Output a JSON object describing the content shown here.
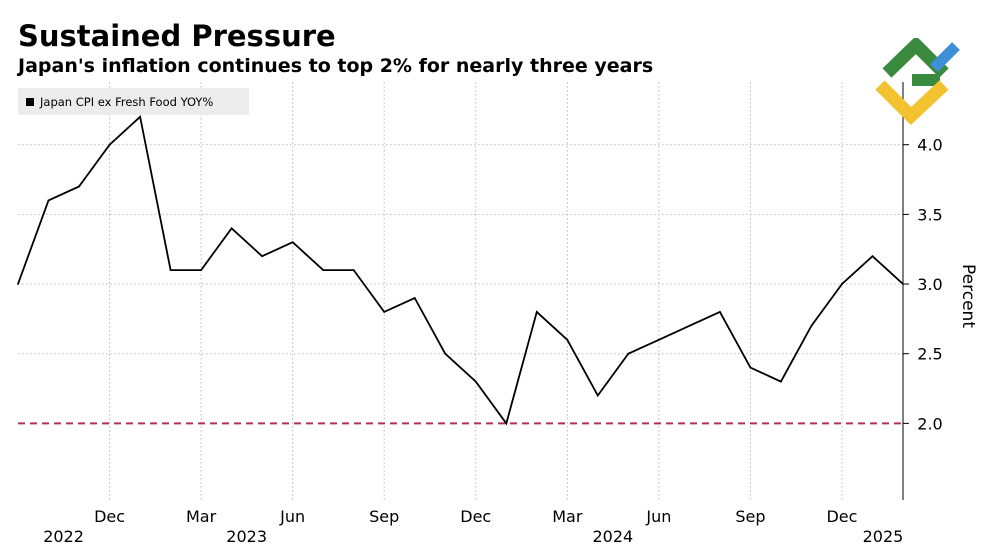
{
  "header": {
    "title": "Sustained Pressure",
    "subtitle": "Japan's inflation continues to top 2% for nearly three years"
  },
  "legend": {
    "label": "Japan CPI ex Fresh Food YOY%"
  },
  "logo": {
    "icon": "brand-logo-icon",
    "colors": [
      "#3a8a3e",
      "#f2c230",
      "#3d8fd6"
    ]
  },
  "chart_data": {
    "type": "line",
    "title": "Sustained Pressure",
    "subtitle": "Japan's inflation continues to top 2% for nearly three years",
    "ylabel": "Percent",
    "ylim": [
      1.45,
      4.45
    ],
    "yticks": [
      2.0,
      2.5,
      3.0,
      3.5,
      4.0
    ],
    "ytick_labels": [
      "2.0",
      "2.5",
      "3.0",
      "3.5",
      "4.0"
    ],
    "y_axis_side": "right",
    "grid": true,
    "legend_position": "top-left",
    "x": [
      "2022-09",
      "2022-10",
      "2022-11",
      "2022-12",
      "2023-01",
      "2023-02",
      "2023-03",
      "2023-04",
      "2023-05",
      "2023-06",
      "2023-07",
      "2023-08",
      "2023-09",
      "2023-10",
      "2023-11",
      "2023-12",
      "2024-01",
      "2024-02",
      "2024-03",
      "2024-04",
      "2024-05",
      "2024-06",
      "2024-07",
      "2024-08",
      "2024-09",
      "2024-10",
      "2024-11",
      "2024-12",
      "2025-01",
      "2025-02"
    ],
    "xticks": [
      {
        "x": "2022-12",
        "label": "Dec",
        "year": "2022"
      },
      {
        "x": "2023-03",
        "label": "Mar",
        "year": ""
      },
      {
        "x": "2023-06",
        "label": "Jun",
        "year": "2023"
      },
      {
        "x": "2023-09",
        "label": "Sep",
        "year": ""
      },
      {
        "x": "2023-12",
        "label": "Dec",
        "year": ""
      },
      {
        "x": "2024-03",
        "label": "Mar",
        "year": ""
      },
      {
        "x": "2024-06",
        "label": "Jun",
        "year": "2024"
      },
      {
        "x": "2024-09",
        "label": "Sep",
        "year": ""
      },
      {
        "x": "2024-12",
        "label": "Dec",
        "year": ""
      }
    ],
    "extra_year_label": "2025",
    "series": [
      {
        "name": "Japan CPI ex Fresh Food YOY%",
        "color": "#000000",
        "values": [
          3.0,
          3.6,
          3.7,
          4.0,
          4.2,
          3.1,
          3.1,
          3.4,
          3.2,
          3.3,
          3.1,
          3.1,
          2.8,
          2.9,
          2.5,
          2.3,
          2.0,
          2.8,
          2.6,
          2.2,
          2.5,
          2.6,
          2.7,
          2.8,
          2.4,
          2.3,
          2.7,
          3.0,
          3.2,
          3.0
        ]
      }
    ],
    "reference_line": {
      "y": 2.0,
      "color": "#b0305a",
      "style": "dashed"
    },
    "grid_color": "#b9b9b9"
  }
}
